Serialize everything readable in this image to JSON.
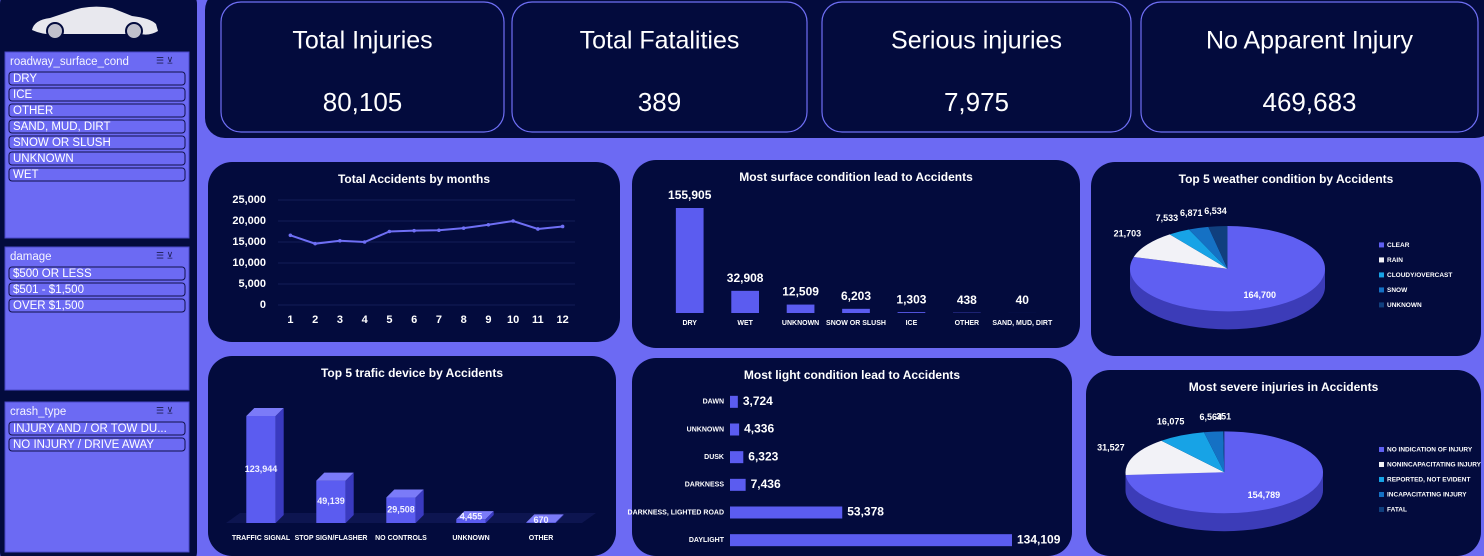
{
  "kpis": [
    {
      "title": "Total Injuries",
      "value": "80,105"
    },
    {
      "title": "Total Fatalities",
      "value": "389"
    },
    {
      "title": "Serious injuries",
      "value": "7,975"
    },
    {
      "title": "No Apparent Injury",
      "value": "469,683"
    }
  ],
  "slicers": [
    {
      "title": "roadway_surface_cond",
      "items": [
        "DRY",
        "ICE",
        "OTHER",
        "SAND, MUD, DIRT",
        "SNOW OR SLUSH",
        "UNKNOWN",
        "WET"
      ]
    },
    {
      "title": "damage",
      "items": [
        "$500 OR LESS",
        "$501 - $1,500",
        "OVER $1,500"
      ]
    },
    {
      "title": "crash_type",
      "items": [
        "INJURY AND / OR TOW DU...",
        "NO INJURY / DRIVE AWAY"
      ]
    }
  ],
  "chart_data": [
    {
      "type": "line",
      "title": "Total Accidents by months",
      "categories": [
        "1",
        "2",
        "3",
        "4",
        "5",
        "6",
        "7",
        "8",
        "9",
        "10",
        "11",
        "12"
      ],
      "values": [
        16600,
        14600,
        15300,
        15000,
        17500,
        17700,
        17800,
        18300,
        19100,
        20000,
        18100,
        18700
      ],
      "color": "#6f6ff5",
      "ylim": [
        0,
        25000
      ],
      "yticks": [
        0,
        {
          "value": 5000,
          "label": "5,000"
        },
        {
          "value": 10000,
          "label": "10,000"
        },
        {
          "value": 15000,
          "label": "15,000"
        },
        {
          "value": 20000,
          "label": "20,000"
        },
        {
          "value": 25000,
          "label": "25,000"
        }
      ],
      "grid": true
    },
    {
      "type": "bar",
      "title": "Most surface condition lead to Accidents",
      "categories": [
        "DRY",
        "WET",
        "UNKNOWN",
        "SNOW OR SLUSH",
        "ICE",
        "OTHER",
        "SAND, MUD, DIRT"
      ],
      "values": [
        155905,
        32908,
        12509,
        6203,
        1303,
        438,
        40
      ],
      "value_labels": [
        "155,905",
        "32,908",
        "12,509",
        "6,203",
        "1,303",
        "438",
        "40"
      ],
      "color": "#5b5cf0"
    },
    {
      "type": "pie",
      "title": "Top 5 weather condition by Accidents",
      "categories": [
        "CLEAR",
        "RAIN",
        "CLOUDY/OVERCAST",
        "SNOW",
        "UNKNOWN"
      ],
      "values": [
        164700,
        21703,
        7533,
        6871,
        6534
      ],
      "value_labels": [
        "164,700",
        "21,703",
        "7,533",
        "6,871",
        "6,534"
      ],
      "colors": [
        "#5f5ff2",
        "#f2f2f7",
        "#17a3e6",
        "#1571c4",
        "#103f7e"
      ]
    },
    {
      "type": "bar",
      "style": "3d",
      "title": "Top 5 trafic device by Accidents",
      "categories": [
        "TRAFFIC SIGNAL",
        "STOP SIGN/FLASHER",
        "NO CONTROLS",
        "UNKNOWN",
        "OTHER"
      ],
      "values": [
        123944,
        49139,
        29508,
        4455,
        670
      ],
      "value_labels": [
        "123,944",
        "49,139",
        "29,508",
        "4,455",
        "670"
      ],
      "color": "#5b5cf0"
    },
    {
      "type": "bar",
      "orientation": "horizontal",
      "title": "Most light condition lead to Accidents",
      "categories": [
        "DAWN",
        "UNKNOWN",
        "DUSK",
        "DARKNESS",
        "DARKNESS, LIGHTED ROAD",
        "DAYLIGHT"
      ],
      "values": [
        3724,
        4336,
        6323,
        7436,
        53378,
        134109
      ],
      "value_labels": [
        "3,724",
        "4,336",
        "6,323",
        "7,436",
        "53,378",
        "134,109"
      ],
      "color": "#5b5cf0"
    },
    {
      "type": "pie",
      "title": "Most severe injuries in Accidents",
      "categories": [
        "NO INDICATION OF INJURY",
        "NONINCAPACITATING INJURY",
        "REPORTED, NOT EVIDENT",
        "INCAPACITATING INJURY",
        "FATAL"
      ],
      "values": [
        154789,
        31527,
        16075,
        6564,
        351
      ],
      "value_labels": [
        "154,789",
        "31,527",
        "16,075",
        "6,564",
        "351"
      ],
      "colors": [
        "#5f5ff2",
        "#f2f2f7",
        "#17a3e6",
        "#1571c4",
        "#103f7e"
      ]
    }
  ]
}
